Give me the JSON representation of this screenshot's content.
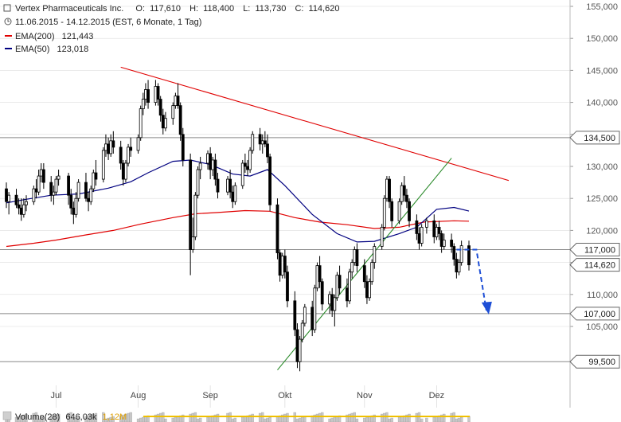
{
  "header": {
    "name": "Vertex Pharmaceuticals Inc.",
    "ohlc": {
      "open_label": "O:",
      "open": "117,610",
      "high_label": "H:",
      "high": "118,400",
      "low_label": "L:",
      "low": "113,730",
      "close_label": "C:",
      "close": "114,620"
    },
    "period": "11.06.2015 - 14.12.2015 (EST, 6 Monate, 1 Tag)",
    "ema200": {
      "label": "EMA(200)",
      "value": "121,443",
      "color": "#e00000"
    },
    "ema50": {
      "label": "EMA(50)",
      "value": "123,018",
      "color": "#000080"
    }
  },
  "volume_bar": {
    "label": "Volume(28)",
    "value1": "646,03k",
    "value2": "1,12M"
  },
  "colors": {
    "grid": "#dddddd",
    "level_line": "#888888",
    "red_trend": "#e00000",
    "green_trend": "#2a8a2a",
    "target_arrow": "#1e4fd6",
    "candle": "#000000",
    "volume": "#c8c8c8"
  },
  "chart_data": {
    "type": "candlestick",
    "x_range": [
      "2015-06-11",
      "2015-12-14"
    ],
    "ylim": [
      100000,
      155000
    ],
    "y_ticks": [
      {
        "value": 105000,
        "label": "105,000"
      },
      {
        "value": 110000,
        "label": "110,000"
      },
      {
        "value": 115000,
        "label": "115,000"
      },
      {
        "value": 120000,
        "label": "120,000"
      },
      {
        "value": 125000,
        "label": "125,000"
      },
      {
        "value": 130000,
        "label": "130,000"
      },
      {
        "value": 135000,
        "label": "135,000"
      },
      {
        "value": 140000,
        "label": "140,000"
      },
      {
        "value": 145000,
        "label": "145,000"
      },
      {
        "value": 150000,
        "label": "150,000"
      },
      {
        "value": 155000,
        "label": "155,000"
      }
    ],
    "x_ticks": [
      {
        "date": "2015-07-01",
        "label": "Jul"
      },
      {
        "date": "2015-08-03",
        "label": "Aug"
      },
      {
        "date": "2015-09-01",
        "label": "Sep"
      },
      {
        "date": "2015-10-01",
        "label": "Okt"
      },
      {
        "date": "2015-11-02",
        "label": "Nov"
      },
      {
        "date": "2015-12-01",
        "label": "Dez"
      }
    ],
    "levels": [
      {
        "value": 134500,
        "label": "134,500"
      },
      {
        "value": 117000,
        "label": "117,000"
      },
      {
        "value": 107000,
        "label": "107,000"
      },
      {
        "value": 99500,
        "label": "99,500"
      }
    ],
    "last_price": {
      "value": 114620,
      "label": "114,620"
    },
    "trendlines": [
      {
        "name": "resistance",
        "from": {
          "date": "2015-07-27",
          "value": 145500
        },
        "to": {
          "date": "2015-12-30",
          "value": 127800
        }
      },
      {
        "name": "support",
        "from": {
          "date": "2015-09-28",
          "value": 98200
        },
        "to": {
          "date": "2015-12-07",
          "value": 131300
        }
      }
    ],
    "target_arrow": [
      {
        "date": "2015-12-09",
        "value": 117000
      },
      {
        "date": "2015-12-17",
        "value": 117000
      },
      {
        "date": "2015-12-21",
        "value": 107500
      }
    ],
    "ema200": [
      [
        "2015-06-11",
        117500
      ],
      [
        "2015-06-22",
        118000
      ],
      [
        "2015-07-01",
        118500
      ],
      [
        "2015-07-13",
        119300
      ],
      [
        "2015-07-24",
        120000
      ],
      [
        "2015-08-04",
        121000
      ],
      [
        "2015-08-17",
        122000
      ],
      [
        "2015-08-26",
        122600
      ],
      [
        "2015-09-04",
        122800
      ],
      [
        "2015-09-15",
        123100
      ],
      [
        "2015-09-25",
        123000
      ],
      [
        "2015-10-05",
        122000
      ],
      [
        "2015-10-15",
        121300
      ],
      [
        "2015-10-26",
        120900
      ],
      [
        "2015-11-06",
        120300
      ],
      [
        "2015-11-16",
        120500
      ],
      [
        "2015-11-26",
        121300
      ],
      [
        "2015-12-08",
        121500
      ],
      [
        "2015-12-14",
        121443
      ]
    ],
    "ema50": [
      [
        "2015-06-11",
        124300
      ],
      [
        "2015-06-18",
        124800
      ],
      [
        "2015-06-29",
        125500
      ],
      [
        "2015-07-10",
        125700
      ],
      [
        "2015-07-22",
        126600
      ],
      [
        "2015-07-31",
        127600
      ],
      [
        "2015-08-07",
        129000
      ],
      [
        "2015-08-17",
        130800
      ],
      [
        "2015-08-24",
        131000
      ],
      [
        "2015-09-01",
        130300
      ],
      [
        "2015-09-10",
        128800
      ],
      [
        "2015-09-17",
        128500
      ],
      [
        "2015-09-24",
        129500
      ],
      [
        "2015-10-01",
        127000
      ],
      [
        "2015-10-12",
        122500
      ],
      [
        "2015-10-22",
        119500
      ],
      [
        "2015-10-30",
        118200
      ],
      [
        "2015-11-06",
        118300
      ],
      [
        "2015-11-16",
        119500
      ],
      [
        "2015-11-23",
        120500
      ],
      [
        "2015-12-01",
        123300
      ],
      [
        "2015-12-08",
        123600
      ],
      [
        "2015-12-14",
        123018
      ]
    ],
    "candles": [
      [
        "2015-06-11",
        126500,
        127500,
        123500,
        124500
      ],
      [
        "2015-06-12",
        124500,
        126000,
        122500,
        125500
      ],
      [
        "2015-06-15",
        125500,
        126500,
        123500,
        124000
      ],
      [
        "2015-06-16",
        124000,
        125000,
        122500,
        123500
      ],
      [
        "2015-06-17",
        123500,
        125000,
        121500,
        122500
      ],
      [
        "2015-06-18",
        122500,
        125000,
        122000,
        124000
      ],
      [
        "2015-06-19",
        124000,
        125500,
        123000,
        124500
      ],
      [
        "2015-06-22",
        124500,
        127000,
        124000,
        126500
      ],
      [
        "2015-06-23",
        126500,
        128000,
        125000,
        126000
      ],
      [
        "2015-06-24",
        126000,
        129500,
        125500,
        128500
      ],
      [
        "2015-06-25",
        128500,
        130500,
        127500,
        129500
      ],
      [
        "2015-06-26",
        129500,
        130500,
        126500,
        127500
      ],
      [
        "2015-06-29",
        127500,
        128500,
        124500,
        125500
      ],
      [
        "2015-06-30",
        125500,
        127000,
        124000,
        126000
      ],
      [
        "2015-07-01",
        126000,
        128500,
        125500,
        128000
      ],
      [
        "2015-07-02",
        128000,
        129500,
        127000,
        128500
      ],
      [
        "2015-07-06",
        128500,
        129000,
        124000,
        125500
      ],
      [
        "2015-07-07",
        125500,
        126500,
        122500,
        123500
      ],
      [
        "2015-07-08",
        123500,
        124500,
        121000,
        122500
      ],
      [
        "2015-07-09",
        122500,
        126000,
        122000,
        125000
      ],
      [
        "2015-07-10",
        125000,
        128000,
        124500,
        127500
      ],
      [
        "2015-07-13",
        127500,
        129000,
        124500,
        125000
      ],
      [
        "2015-07-14",
        125000,
        126000,
        123000,
        124500
      ],
      [
        "2015-07-15",
        124500,
        127000,
        124000,
        126500
      ],
      [
        "2015-07-16",
        126500,
        129500,
        126000,
        129000
      ],
      [
        "2015-07-17",
        129000,
        131000,
        127000,
        128000
      ],
      [
        "2015-07-20",
        128000,
        133000,
        127500,
        132500
      ],
      [
        "2015-07-21",
        132500,
        135000,
        131500,
        133500
      ],
      [
        "2015-07-22",
        133500,
        134500,
        131000,
        132000
      ],
      [
        "2015-07-23",
        132000,
        135000,
        131500,
        134000
      ],
      [
        "2015-07-24",
        134000,
        135500,
        132000,
        133000
      ],
      [
        "2015-07-27",
        133000,
        134000,
        129500,
        130500
      ],
      [
        "2015-07-28",
        130500,
        131000,
        127000,
        128000
      ],
      [
        "2015-07-29",
        128000,
        131000,
        127500,
        130500
      ],
      [
        "2015-07-30",
        130500,
        133500,
        130000,
        133000
      ],
      [
        "2015-07-31",
        133000,
        134500,
        131500,
        132500
      ],
      [
        "2015-08-03",
        132500,
        135000,
        132000,
        134500
      ],
      [
        "2015-08-04",
        134500,
        139500,
        134000,
        139000
      ],
      [
        "2015-08-05",
        139000,
        141500,
        138000,
        140500
      ],
      [
        "2015-08-06",
        140500,
        143000,
        139500,
        142000
      ],
      [
        "2015-08-07",
        142000,
        143500,
        139000,
        140000
      ],
      [
        "2015-08-10",
        140000,
        143500,
        139500,
        142500
      ],
      [
        "2015-08-11",
        142500,
        143000,
        139500,
        140500
      ],
      [
        "2015-08-12",
        140500,
        141000,
        137000,
        138000
      ],
      [
        "2015-08-13",
        138000,
        139000,
        135000,
        136000
      ],
      [
        "2015-08-14",
        136000,
        138500,
        135500,
        137500
      ],
      [
        "2015-08-17",
        137500,
        140000,
        136500,
        139500
      ],
      [
        "2015-08-18",
        139500,
        141500,
        139000,
        141000
      ],
      [
        "2015-08-19",
        141000,
        143000,
        139000,
        139500
      ],
      [
        "2015-08-20",
        139500,
        140000,
        134000,
        135000
      ],
      [
        "2015-08-21",
        135000,
        136000,
        130000,
        131000
      ],
      [
        "2015-08-24",
        131000,
        132000,
        113000,
        117000
      ],
      [
        "2015-08-25",
        117000,
        122000,
        116500,
        119000
      ],
      [
        "2015-08-26",
        119000,
        126000,
        118500,
        125500
      ],
      [
        "2015-08-27",
        125500,
        130000,
        125000,
        129500
      ],
      [
        "2015-08-28",
        129500,
        131500,
        128000,
        130500
      ],
      [
        "2015-08-31",
        130500,
        132500,
        129500,
        132000
      ],
      [
        "2015-09-01",
        132000,
        133000,
        128000,
        129500
      ],
      [
        "2015-09-02",
        129500,
        131500,
        128500,
        131000
      ],
      [
        "2015-09-03",
        131000,
        132000,
        127000,
        128000
      ],
      [
        "2015-09-04",
        128000,
        129000,
        125000,
        126000
      ],
      [
        "2015-09-08",
        126000,
        128500,
        125500,
        128000
      ],
      [
        "2015-09-09",
        128000,
        129500,
        125000,
        126000
      ],
      [
        "2015-09-10",
        126000,
        127000,
        123500,
        124500
      ],
      [
        "2015-09-11",
        124500,
        127500,
        124000,
        127000
      ],
      [
        "2015-09-14",
        127000,
        131000,
        126500,
        130500
      ],
      [
        "2015-09-15",
        130500,
        132000,
        129000,
        130000
      ],
      [
        "2015-09-16",
        130000,
        131000,
        128500,
        129500
      ],
      [
        "2015-09-17",
        129500,
        133000,
        129000,
        132500
      ],
      [
        "2015-09-18",
        132500,
        135500,
        132000,
        135000
      ],
      [
        "2015-09-21",
        135000,
        136000,
        132500,
        133500
      ],
      [
        "2015-09-22",
        133500,
        135000,
        132000,
        134000
      ],
      [
        "2015-09-23",
        134000,
        135500,
        133000,
        133500
      ],
      [
        "2015-09-24",
        133500,
        135000,
        130500,
        131500
      ],
      [
        "2015-09-25",
        131500,
        132000,
        123000,
        124000
      ],
      [
        "2015-09-28",
        124000,
        125000,
        115500,
        116500
      ],
      [
        "2015-09-29",
        116500,
        117000,
        112000,
        113000
      ],
      [
        "2015-09-30",
        113000,
        116500,
        112500,
        116000
      ],
      [
        "2015-10-01",
        116000,
        117000,
        112500,
        113500
      ],
      [
        "2015-10-02",
        113500,
        114500,
        108000,
        109000
      ],
      [
        "2015-10-05",
        109000,
        110500,
        103500,
        104500
      ],
      [
        "2015-10-06",
        104500,
        105500,
        98500,
        99500
      ],
      [
        "2015-10-07",
        99500,
        103500,
        98000,
        103000
      ],
      [
        "2015-10-08",
        103000,
        106000,
        102500,
        105500
      ],
      [
        "2015-10-09",
        105500,
        108500,
        105000,
        108000
      ],
      [
        "2015-10-12",
        108000,
        109000,
        103500,
        104500
      ],
      [
        "2015-10-13",
        104500,
        111500,
        104000,
        111000
      ],
      [
        "2015-10-14",
        111000,
        115000,
        110500,
        114500
      ],
      [
        "2015-10-15",
        114500,
        116000,
        111000,
        112000
      ],
      [
        "2015-10-16",
        112000,
        112500,
        107500,
        108500
      ],
      [
        "2015-10-19",
        108500,
        110500,
        107000,
        110000
      ],
      [
        "2015-10-20",
        110000,
        111000,
        106500,
        107500
      ],
      [
        "2015-10-21",
        107500,
        110000,
        105000,
        109500
      ],
      [
        "2015-10-22",
        109500,
        113500,
        109000,
        113000
      ],
      [
        "2015-10-23",
        113000,
        114500,
        110000,
        111000
      ],
      [
        "2015-10-26",
        111000,
        112500,
        108000,
        109000
      ],
      [
        "2015-10-27",
        109000,
        114000,
        108500,
        113500
      ],
      [
        "2015-10-28",
        113500,
        115500,
        112500,
        115000
      ],
      [
        "2015-10-29",
        115000,
        117500,
        114500,
        117000
      ],
      [
        "2015-10-30",
        117000,
        118000,
        113500,
        114500
      ],
      [
        "2015-11-02",
        114500,
        115500,
        111000,
        112000
      ],
      [
        "2015-11-03",
        112000,
        113000,
        108500,
        109500
      ],
      [
        "2015-11-04",
        109500,
        112500,
        109000,
        112000
      ],
      [
        "2015-11-05",
        112000,
        115500,
        111500,
        115000
      ],
      [
        "2015-11-06",
        115000,
        118000,
        114000,
        117500
      ],
      [
        "2015-11-09",
        117500,
        121000,
        117000,
        120500
      ],
      [
        "2015-11-10",
        120500,
        125500,
        120000,
        125000
      ],
      [
        "2015-11-11",
        125000,
        128500,
        124500,
        128000
      ],
      [
        "2015-11-12",
        128000,
        128500,
        123500,
        124500
      ],
      [
        "2015-11-13",
        124500,
        125000,
        120500,
        121500
      ],
      [
        "2015-11-16",
        121500,
        125000,
        121000,
        124500
      ],
      [
        "2015-11-17",
        124500,
        127500,
        124000,
        127000
      ],
      [
        "2015-11-18",
        127000,
        128500,
        124500,
        125500
      ],
      [
        "2015-11-19",
        125500,
        126500,
        123500,
        124500
      ],
      [
        "2015-11-20",
        124500,
        125000,
        120500,
        121500
      ],
      [
        "2015-11-23",
        121500,
        122500,
        118500,
        119500
      ],
      [
        "2015-11-24",
        119500,
        120500,
        117000,
        118000
      ],
      [
        "2015-11-25",
        118000,
        121000,
        117500,
        120500
      ],
      [
        "2015-11-27",
        120500,
        122000,
        119500,
        121500
      ],
      [
        "2015-11-30",
        121500,
        122500,
        118000,
        119000
      ],
      [
        "2015-12-01",
        119000,
        121000,
        118500,
        120500
      ],
      [
        "2015-12-02",
        120500,
        121500,
        118500,
        119500
      ],
      [
        "2015-12-03",
        119500,
        120000,
        116500,
        117500
      ],
      [
        "2015-12-04",
        117500,
        119500,
        117000,
        118500
      ],
      [
        "2015-12-07",
        118500,
        119500,
        116500,
        117500
      ],
      [
        "2015-12-08",
        117500,
        118000,
        114500,
        115500
      ],
      [
        "2015-12-09",
        115500,
        116500,
        112500,
        113500
      ],
      [
        "2015-12-10",
        113500,
        115500,
        113000,
        115000
      ],
      [
        "2015-12-11",
        115000,
        118400,
        114500,
        117610
      ],
      [
        "2015-12-14",
        117610,
        118400,
        113730,
        114620
      ]
    ]
  }
}
